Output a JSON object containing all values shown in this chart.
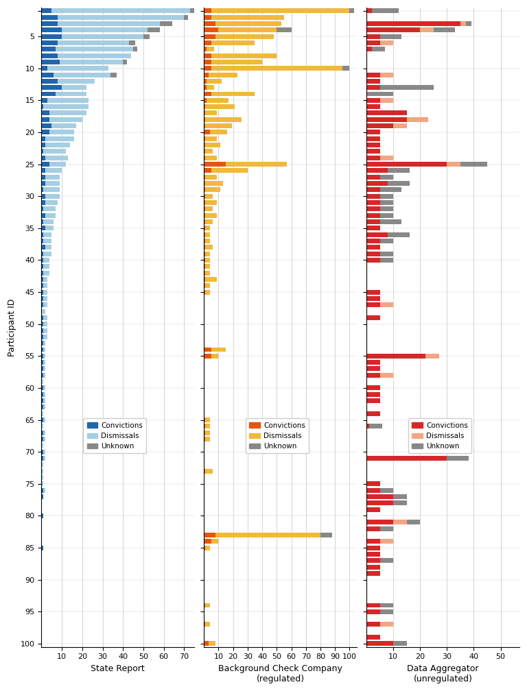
{
  "n_participants": 100,
  "panel_titles": [
    "State Report",
    "Background Check Company\n(regulated)",
    "Data Aggregator\n(unregulated)"
  ],
  "categories": [
    "Convictions",
    "Dismissals",
    "Unknown"
  ],
  "colors": {
    "state": [
      "#2166ac",
      "#a6cee3",
      "#888888"
    ],
    "bgc": [
      "#e6550d",
      "#f0b93a",
      "#888888"
    ],
    "agg": [
      "#d62728",
      "#f4a582",
      "#888888"
    ]
  },
  "panel_xlims": [
    75,
    105,
    57
  ],
  "panel_xticks": [
    [
      10,
      20,
      30,
      40,
      50,
      60,
      70
    ],
    [
      10,
      20,
      30,
      40,
      50,
      60,
      70,
      80,
      90,
      100
    ],
    [
      10,
      20,
      30,
      40,
      50
    ]
  ],
  "state_conv": [
    5,
    8,
    8,
    10,
    10,
    8,
    7,
    8,
    9,
    3,
    6,
    8,
    10,
    7,
    3,
    1,
    4,
    4,
    5,
    4,
    2,
    2,
    1,
    2,
    4,
    2,
    2,
    2,
    1,
    2,
    2,
    1,
    2,
    1,
    2,
    1,
    1,
    2,
    1,
    1,
    1,
    1,
    1,
    1,
    1,
    1,
    1,
    0,
    1,
    1,
    1,
    1,
    1,
    1,
    1,
    1,
    1,
    1,
    0,
    1,
    1,
    1,
    1,
    0,
    1,
    0,
    1,
    1,
    0,
    1,
    1,
    0,
    0,
    0,
    0,
    1,
    1,
    0,
    0,
    1,
    0,
    0,
    0,
    0,
    1,
    0,
    0,
    0,
    0,
    0,
    0,
    0,
    0,
    0,
    0,
    0,
    0,
    0,
    0,
    0
  ],
  "state_dism": [
    68,
    62,
    50,
    42,
    40,
    35,
    38,
    36,
    31,
    30,
    28,
    18,
    12,
    15,
    20,
    22,
    18,
    16,
    12,
    12,
    14,
    12,
    11,
    11,
    8,
    8,
    7,
    7,
    8,
    7,
    6,
    6,
    5,
    5,
    4,
    4,
    4,
    3,
    4,
    3,
    3,
    3,
    2,
    2,
    2,
    2,
    2,
    2,
    2,
    2,
    2,
    2,
    1,
    1,
    1,
    1,
    1,
    1,
    1,
    1,
    1,
    1,
    1,
    1,
    1,
    1,
    1,
    1,
    1,
    1,
    1,
    1,
    1,
    1,
    1,
    1,
    0,
    0,
    0,
    0,
    0,
    0,
    0,
    0,
    0,
    0,
    0,
    0,
    0,
    0,
    0,
    0,
    0,
    0,
    0,
    0,
    0,
    0,
    0,
    0
  ],
  "state_unkn": [
    2,
    2,
    6,
    6,
    3,
    3,
    2,
    0,
    2,
    0,
    3,
    0,
    0,
    0,
    0,
    0,
    0,
    0,
    0,
    0,
    0,
    0,
    0,
    0,
    0,
    0,
    0,
    0,
    0,
    0,
    0,
    0,
    0,
    0,
    0,
    0,
    0,
    0,
    0,
    0,
    0,
    0,
    0,
    0,
    0,
    0,
    0,
    0,
    0,
    0,
    0,
    0,
    0,
    0,
    0,
    0,
    0,
    0,
    0,
    0,
    0,
    0,
    0,
    0,
    0,
    0,
    0,
    0,
    0,
    0,
    0,
    0,
    0,
    0,
    0,
    0,
    0,
    0,
    0,
    0,
    0,
    0,
    0,
    0,
    0,
    0,
    0,
    0,
    0,
    0,
    0,
    0,
    0,
    0,
    0,
    0,
    0,
    0,
    0,
    0
  ],
  "bgc_conv": [
    5,
    5,
    8,
    10,
    8,
    5,
    2,
    5,
    5,
    5,
    3,
    2,
    2,
    5,
    2,
    1,
    1,
    1,
    1,
    4,
    1,
    1,
    1,
    1,
    15,
    5,
    1,
    1,
    1,
    1,
    1,
    1,
    1,
    1,
    1,
    1,
    1,
    1,
    1,
    1,
    1,
    1,
    1,
    1,
    1,
    0,
    0,
    0,
    0,
    0,
    0,
    0,
    0,
    5,
    5,
    0,
    0,
    0,
    0,
    0,
    0,
    0,
    0,
    0,
    1,
    1,
    1,
    1,
    0,
    0,
    0,
    0,
    1,
    0,
    0,
    0,
    0,
    0,
    0,
    0,
    0,
    0,
    8,
    5,
    1,
    0,
    0,
    0,
    0,
    0,
    0,
    0,
    0,
    1,
    0,
    0,
    1,
    0,
    0,
    3
  ],
  "bgc_dism": [
    95,
    50,
    45,
    40,
    40,
    30,
    5,
    45,
    35,
    90,
    20,
    10,
    5,
    30,
    15,
    20,
    8,
    25,
    18,
    12,
    8,
    10,
    5,
    8,
    42,
    25,
    8,
    12,
    10,
    5,
    8,
    5,
    8,
    5,
    3,
    3,
    3,
    5,
    3,
    3,
    3,
    3,
    8,
    3,
    3,
    0,
    0,
    0,
    0,
    0,
    0,
    0,
    0,
    10,
    5,
    0,
    0,
    0,
    0,
    0,
    0,
    0,
    0,
    0,
    3,
    3,
    3,
    3,
    0,
    0,
    0,
    0,
    5,
    0,
    0,
    0,
    0,
    0,
    0,
    0,
    0,
    0,
    72,
    5,
    3,
    0,
    0,
    0,
    0,
    0,
    0,
    0,
    0,
    3,
    0,
    0,
    3,
    0,
    0,
    5
  ],
  "bgc_unkn": [
    3,
    0,
    0,
    10,
    0,
    0,
    0,
    0,
    0,
    5,
    0,
    0,
    0,
    0,
    0,
    0,
    0,
    0,
    0,
    0,
    0,
    0,
    0,
    0,
    0,
    0,
    0,
    0,
    0,
    0,
    0,
    0,
    0,
    0,
    0,
    0,
    0,
    0,
    0,
    0,
    0,
    0,
    0,
    0,
    0,
    0,
    0,
    0,
    0,
    0,
    0,
    0,
    0,
    0,
    0,
    0,
    0,
    0,
    0,
    0,
    0,
    0,
    0,
    0,
    0,
    0,
    0,
    0,
    0,
    0,
    0,
    0,
    0,
    0,
    0,
    0,
    0,
    0,
    0,
    0,
    0,
    0,
    8,
    0,
    0,
    0,
    0,
    0,
    0,
    0,
    0,
    0,
    0,
    0,
    0,
    0,
    0,
    0,
    0,
    0
  ],
  "agg_conv": [
    2,
    0,
    35,
    20,
    5,
    5,
    2,
    0,
    0,
    0,
    5,
    5,
    5,
    0,
    5,
    5,
    15,
    15,
    10,
    5,
    5,
    5,
    5,
    5,
    30,
    8,
    5,
    8,
    5,
    5,
    5,
    5,
    5,
    5,
    5,
    8,
    5,
    5,
    5,
    5,
    0,
    0,
    0,
    0,
    5,
    5,
    5,
    0,
    5,
    0,
    0,
    0,
    0,
    0,
    22,
    5,
    5,
    5,
    0,
    5,
    5,
    5,
    0,
    5,
    0,
    1,
    0,
    0,
    0,
    0,
    30,
    0,
    0,
    0,
    5,
    5,
    10,
    10,
    5,
    0,
    10,
    5,
    0,
    5,
    5,
    5,
    5,
    5,
    5,
    0,
    0,
    0,
    0,
    5,
    5,
    0,
    5,
    0,
    5,
    10
  ],
  "agg_dism": [
    0,
    0,
    2,
    5,
    0,
    5,
    0,
    0,
    0,
    0,
    5,
    0,
    0,
    0,
    5,
    0,
    0,
    8,
    5,
    0,
    0,
    0,
    0,
    5,
    5,
    0,
    0,
    0,
    0,
    0,
    0,
    0,
    0,
    0,
    0,
    0,
    0,
    0,
    0,
    0,
    0,
    0,
    0,
    0,
    0,
    0,
    5,
    0,
    0,
    0,
    0,
    0,
    0,
    0,
    5,
    0,
    0,
    5,
    0,
    0,
    0,
    0,
    0,
    0,
    0,
    0,
    0,
    0,
    0,
    0,
    0,
    0,
    0,
    0,
    0,
    0,
    0,
    0,
    0,
    0,
    5,
    0,
    0,
    5,
    0,
    0,
    0,
    0,
    0,
    0,
    0,
    0,
    0,
    0,
    0,
    0,
    5,
    0,
    0,
    0
  ],
  "agg_unkn": [
    10,
    0,
    2,
    8,
    8,
    0,
    5,
    0,
    0,
    0,
    0,
    0,
    20,
    10,
    0,
    0,
    0,
    0,
    0,
    0,
    0,
    0,
    0,
    0,
    10,
    8,
    5,
    8,
    8,
    5,
    5,
    5,
    5,
    8,
    0,
    8,
    5,
    0,
    5,
    5,
    0,
    0,
    0,
    0,
    0,
    0,
    0,
    0,
    0,
    0,
    0,
    0,
    0,
    0,
    0,
    0,
    0,
    0,
    0,
    0,
    0,
    0,
    0,
    0,
    0,
    5,
    0,
    0,
    0,
    0,
    8,
    0,
    0,
    0,
    0,
    5,
    5,
    5,
    0,
    0,
    5,
    5,
    0,
    0,
    0,
    0,
    5,
    0,
    0,
    0,
    0,
    0,
    0,
    5,
    5,
    0,
    0,
    0,
    0,
    5
  ]
}
